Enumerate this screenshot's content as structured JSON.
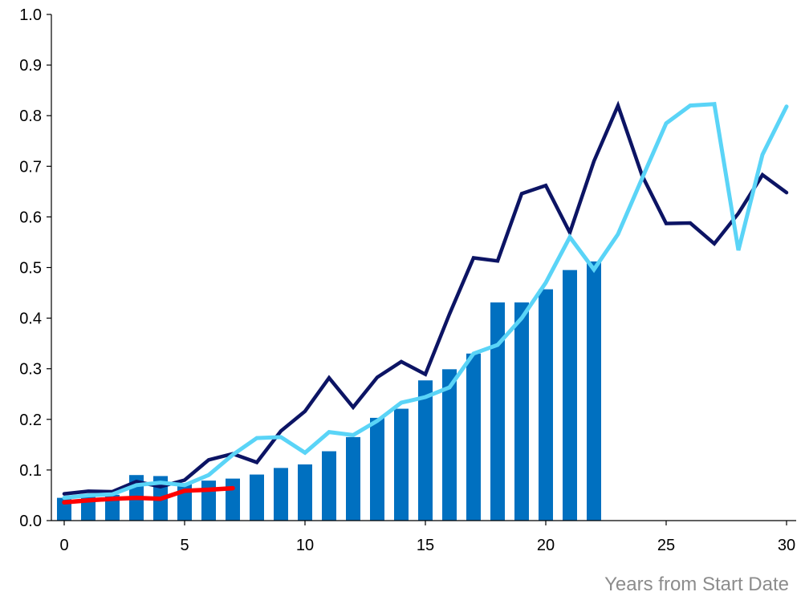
{
  "chart_data": {
    "type": "bar",
    "title": "",
    "xlabel": "Years from Start Date",
    "ylabel": "",
    "xlim": [
      0,
      30
    ],
    "ylim": [
      0,
      1.0
    ],
    "x_ticks": [
      0,
      5,
      10,
      15,
      20,
      25,
      30
    ],
    "y_ticks": [
      0.0,
      0.1,
      0.2,
      0.3,
      0.4,
      0.5,
      0.6,
      0.7,
      0.8,
      0.9,
      1.0
    ],
    "grid": false,
    "legend": "none",
    "colors": {
      "bars": "#0070c0",
      "navy_line": "#0c1464",
      "light_line": "#5ad4f7",
      "red_line": "#ff0000",
      "axis": "#000000"
    },
    "series": [
      {
        "type": "bar",
        "x": [
          0,
          1,
          2,
          3,
          4,
          5,
          6,
          7,
          8,
          9,
          10,
          11,
          12,
          13,
          14,
          15,
          16,
          17,
          18,
          19,
          20,
          21,
          22
        ],
        "values": [
          0.045,
          0.049,
          0.051,
          0.09,
          0.088,
          0.074,
          0.079,
          0.083,
          0.091,
          0.104,
          0.111,
          0.137,
          0.165,
          0.203,
          0.221,
          0.277,
          0.299,
          0.33,
          0.431,
          0.431,
          0.457,
          0.495,
          0.512
        ]
      },
      {
        "type": "line",
        "x": [
          0,
          1,
          2,
          3,
          4,
          5,
          6,
          7,
          8,
          9,
          10,
          11,
          12,
          13,
          14,
          15,
          16,
          17,
          18,
          19,
          20,
          21,
          22,
          23,
          24,
          25,
          26,
          27,
          28,
          29,
          30
        ],
        "values": [
          0.053,
          0.058,
          0.057,
          0.077,
          0.067,
          0.08,
          0.12,
          0.132,
          0.115,
          0.177,
          0.216,
          0.282,
          0.224,
          0.283,
          0.314,
          0.289,
          0.408,
          0.519,
          0.513,
          0.646,
          0.662,
          0.569,
          0.71,
          0.82,
          0.682,
          0.587,
          0.588,
          0.547,
          0.607,
          0.683,
          0.648
        ]
      },
      {
        "type": "line",
        "x": [
          0,
          1,
          2,
          3,
          4,
          5,
          6,
          7,
          8,
          9,
          10,
          11,
          12,
          13,
          14,
          15,
          16,
          17,
          18,
          19,
          20,
          21,
          22,
          23,
          24,
          25,
          26,
          27,
          28,
          29,
          30
        ],
        "values": [
          0.045,
          0.05,
          0.052,
          0.07,
          0.075,
          0.07,
          0.09,
          0.13,
          0.163,
          0.165,
          0.134,
          0.175,
          0.169,
          0.197,
          0.233,
          0.244,
          0.263,
          0.33,
          0.347,
          0.4,
          0.47,
          0.56,
          0.496,
          0.566,
          0.676,
          0.785,
          0.82,
          0.823,
          0.534,
          0.723,
          0.818
        ]
      },
      {
        "type": "line",
        "x": [
          0,
          1,
          2,
          3,
          4,
          5,
          6,
          7
        ],
        "values": [
          0.036,
          0.04,
          0.043,
          0.045,
          0.043,
          0.059,
          0.061,
          0.064
        ]
      }
    ]
  }
}
